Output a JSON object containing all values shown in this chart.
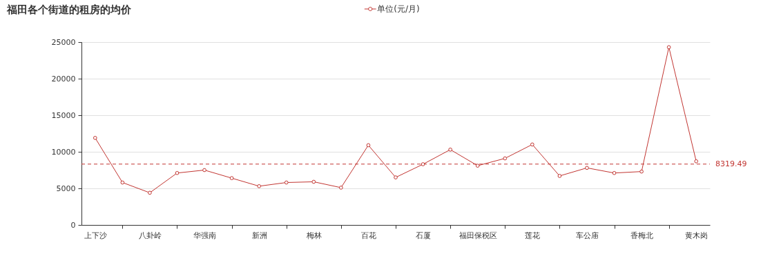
{
  "chart_data": {
    "type": "line",
    "title": "福田各个街道的租房的均价",
    "categories": [
      "上下沙",
      null,
      "八卦岭",
      null,
      "华强南",
      null,
      "新洲",
      null,
      "梅林",
      null,
      "百花",
      null,
      "石厦",
      null,
      "福田保税区",
      null,
      "莲花",
      null,
      "车公庙",
      null,
      "香梅北",
      null,
      "黄木岗"
    ],
    "series": [
      {
        "name": "单位(元/月)",
        "color": "#c23531",
        "values": [
          11900,
          5800,
          4400,
          7100,
          7500,
          6400,
          5300,
          5800,
          5900,
          5100,
          10900,
          6500,
          8300,
          10300,
          8100,
          9100,
          11000,
          6700,
          7800,
          7100,
          7300,
          24300,
          8700
        ]
      }
    ],
    "ylim": [
      0,
      25000
    ],
    "yticks": [
      0,
      5000,
      10000,
      15000,
      20000,
      25000
    ],
    "grid": "y",
    "legend": "top",
    "marker": "circle",
    "line_style": "solid",
    "ref_lines": [
      {
        "axis": "y",
        "value": 8319.49,
        "label": "8319.49",
        "color": "#c23531",
        "line_style": "dashed"
      }
    ]
  }
}
